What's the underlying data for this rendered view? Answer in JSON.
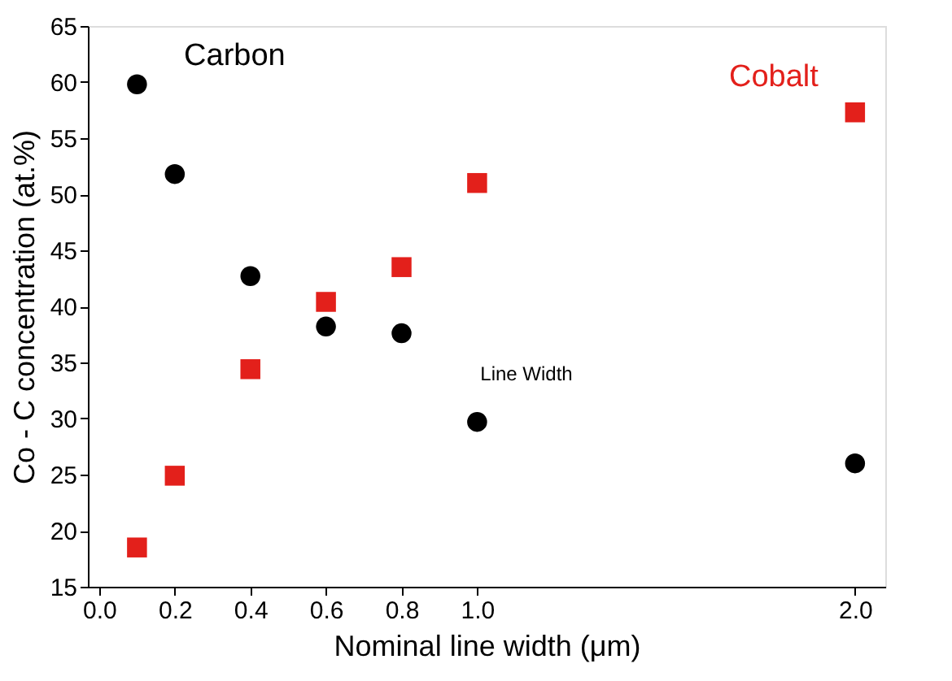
{
  "chart_data": {
    "type": "scatter",
    "xlabel": "Nominal line width (μm)",
    "ylabel": "Co - C concentration (at.%)",
    "x": [
      0.1,
      0.2,
      0.4,
      0.6,
      0.8,
      1.0,
      2.0
    ],
    "series": [
      {
        "name": "Carbon",
        "color": "#000000",
        "marker": "circle",
        "values": [
          59.8,
          51.8,
          42.7,
          38.2,
          37.6,
          29.7,
          26.0
        ]
      },
      {
        "name": "Cobalt",
        "color": "#e3201b",
        "marker": "square",
        "values": [
          18.5,
          24.9,
          34.4,
          40.4,
          43.5,
          51.0,
          57.3
        ]
      }
    ],
    "xlim": [
      -0.03,
      2.08
    ],
    "xticks": [
      {
        "value": 0,
        "label": "0.0"
      },
      0.2,
      0.4,
      0.6,
      0.8,
      {
        "value": 1,
        "label": "1.0"
      },
      {
        "value": 2,
        "label": "2.0"
      }
    ],
    "ylim": [
      15,
      65
    ],
    "yticks": [
      15,
      20,
      25,
      30,
      35,
      40,
      45,
      50,
      55,
      60,
      65
    ],
    "annotations": [
      "Line Width"
    ],
    "grid": false,
    "legend": false
  }
}
